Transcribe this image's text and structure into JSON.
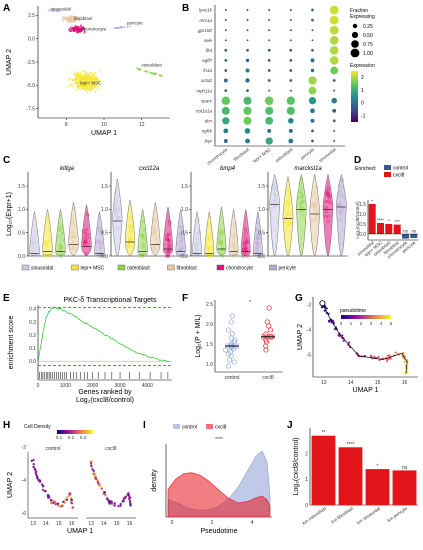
{
  "panels": {
    "A": "A",
    "B": "B",
    "C": "C",
    "D": "D",
    "E": "E",
    "F": "F",
    "G": "G",
    "H": "H",
    "I": "I",
    "J": "J"
  },
  "colors": {
    "sinusoidal": "#c9c9e6",
    "lepr_msc": "#f5e633",
    "osteoblast": "#8fd64b",
    "fibroblast": "#e8c9a6",
    "chondrocyte": "#e0147a",
    "pericyte": "#b7a7d6",
    "control": "#3a5a8c",
    "cxcl8": "#e4141b"
  },
  "chart_data": [
    {
      "id": "A",
      "type": "scatter",
      "xlabel": "UMAP 1",
      "ylabel": "UMAP 2",
      "xticks": [
        8,
        10,
        12
      ],
      "yticks": [
        2.5,
        0.0,
        -2.5,
        -5.0,
        -7.5
      ],
      "xlim": [
        6.5,
        13.5
      ],
      "ylim": [
        -8.5,
        3.5
      ],
      "clusters": [
        {
          "name": "sinusoidal",
          "color": "#c9c9e6",
          "center": [
            7.4,
            3.0
          ]
        },
        {
          "name": "fibroblast",
          "color": "#e8c9a6",
          "center": [
            8.3,
            2.1
          ]
        },
        {
          "name": "chondrocyte",
          "color": "#e0147a",
          "center": [
            8.6,
            1.0
          ]
        },
        {
          "name": "pericyte",
          "color": "#b7a7d6",
          "center": [
            10.9,
            1.2
          ]
        },
        {
          "name": "osteoblast",
          "color": "#8fd64b",
          "center": [
            12.3,
            -3.5
          ]
        },
        {
          "name": "lepr+ MSC",
          "color": "#f5e633",
          "center": [
            9.0,
            -4.6
          ]
        }
      ]
    },
    {
      "id": "B",
      "type": "dotplot",
      "genes": [
        "lyve1b",
        "mrc1a",
        "gpr182",
        "sele",
        "flt4",
        "egfl7",
        "fn1a",
        "acta2",
        "myh11a",
        "sparc",
        "col1a1a",
        "dcn",
        "ngfrb",
        "lepr"
      ],
      "groups": [
        "chondrocyte",
        "fibroblast",
        "lepr+ MSC",
        "osteoblast",
        "pericyte",
        "sinusoidal"
      ],
      "fraction": [
        [
          0.05,
          0.05,
          0.05,
          0.05,
          0.1,
          1.0
        ],
        [
          0.05,
          0.05,
          0.05,
          0.05,
          0.1,
          1.0
        ],
        [
          0.05,
          0.05,
          0.05,
          0.05,
          0.05,
          1.0
        ],
        [
          0.05,
          0.05,
          0.05,
          0.05,
          0.05,
          0.95
        ],
        [
          0.1,
          0.1,
          0.1,
          0.1,
          0.1,
          0.95
        ],
        [
          0.1,
          0.15,
          0.1,
          0.1,
          0.2,
          0.95
        ],
        [
          0.1,
          0.2,
          0.1,
          0.1,
          0.15,
          0.8
        ],
        [
          0.2,
          0.25,
          0.1,
          0.1,
          0.9,
          0.1
        ],
        [
          0.1,
          0.1,
          0.05,
          0.05,
          0.8,
          0.05
        ],
        [
          0.9,
          0.85,
          0.95,
          0.9,
          0.7,
          0.4
        ],
        [
          0.8,
          0.9,
          0.85,
          0.85,
          0.3,
          0.2
        ],
        [
          0.7,
          0.85,
          0.8,
          0.4,
          0.2,
          0.1
        ],
        [
          0.3,
          0.4,
          0.2,
          0.2,
          0.1,
          0.05
        ],
        [
          0.2,
          0.3,
          0.7,
          0.3,
          0.1,
          0.05
        ]
      ],
      "expression": [
        [
          -0.4,
          -0.4,
          -0.4,
          -0.4,
          -0.3,
          2.2
        ],
        [
          -0.4,
          -0.4,
          -0.4,
          -0.4,
          -0.3,
          2.2
        ],
        [
          -0.4,
          -0.4,
          -0.4,
          -0.4,
          -0.4,
          2.1
        ],
        [
          -0.4,
          -0.4,
          -0.4,
          -0.4,
          -0.4,
          2.0
        ],
        [
          -0.3,
          -0.3,
          -0.3,
          -0.3,
          -0.3,
          2.0
        ],
        [
          -0.3,
          -0.2,
          -0.3,
          -0.3,
          0.0,
          2.0
        ],
        [
          -0.3,
          0.0,
          -0.3,
          -0.3,
          -0.1,
          1.6
        ],
        [
          0.0,
          0.1,
          -0.3,
          -0.3,
          1.9,
          -0.3
        ],
        [
          -0.3,
          -0.3,
          -0.4,
          -0.4,
          1.8,
          -0.4
        ],
        [
          1.5,
          1.2,
          1.6,
          1.4,
          0.6,
          0.2
        ],
        [
          1.2,
          1.5,
          1.3,
          1.3,
          0.2,
          -0.1
        ],
        [
          0.9,
          1.6,
          1.2,
          0.3,
          -0.1,
          -0.3
        ],
        [
          0.2,
          0.4,
          0.0,
          0.0,
          -0.3,
          -0.4
        ],
        [
          -0.1,
          0.1,
          0.9,
          0.1,
          -0.3,
          -0.4
        ]
      ],
      "fraction_legend": {
        "title": "Fraction\nExpressing",
        "values": [
          0.25,
          0.5,
          0.75,
          1.0
        ]
      },
      "expression_legend": {
        "title": "Expression",
        "ticks": [
          2,
          1,
          0,
          -1
        ],
        "range": [
          -1.5,
          2.5
        ]
      }
    },
    {
      "id": "C",
      "type": "violin",
      "ylabel": "Log₁₀(Expr+1)",
      "genes": [
        "kitlga",
        "cxcl12a",
        "bmp4",
        "marcksl1a"
      ],
      "yticks": [
        0.0,
        0.5,
        1.0,
        1.5
      ],
      "ylim": [
        0,
        1.8
      ],
      "groups": [
        "sinusoidal",
        "lepr+ MSC",
        "osteoblast",
        "fibroblast",
        "chondrocyte",
        "pericyte"
      ],
      "medians": [
        [
          0.05,
          0.1,
          0.1,
          0.25,
          0.2,
          0.05
        ],
        [
          0.75,
          0.3,
          0.1,
          0.25,
          0.15,
          0.1
        ],
        [
          0.05,
          0.05,
          0.15,
          0.1,
          0.1,
          0.05
        ],
        [
          1.1,
          0.8,
          1.0,
          0.9,
          1.0,
          1.05
        ]
      ]
    },
    {
      "id": "D",
      "type": "bar",
      "ylabel": "Log₂(cxcl8/control)",
      "categories": [
        "sinusoidal",
        "lepr+ MSC",
        "osteoblast",
        "fibroblast",
        "chondrocyte",
        "pericyte"
      ],
      "values": [
        1.5,
        0.55,
        0.5,
        0.47,
        -0.23,
        -0.2
      ],
      "significance": [
        "*",
        "****",
        "*",
        "***",
        "ns",
        "ns"
      ],
      "enriched": [
        "cxcl8",
        "cxcl8",
        "cxcl8",
        "cxcl8",
        "control",
        "control"
      ],
      "yticks": [
        1.5,
        1.0,
        0.5,
        0.0
      ],
      "ylim": [
        -0.3,
        1.7
      ],
      "legend_title": "Enriched:",
      "legend": [
        "control",
        "cxcl8"
      ]
    },
    {
      "id": "E",
      "type": "line",
      "title": "PKC-δ Transcriptional Targets",
      "xlabel": "Genes ranked by\nLog₂(cxcl8/control)",
      "ylabel": "enrichment score",
      "xticks": [
        0,
        1000,
        2000,
        3000,
        4000
      ],
      "yticks": [
        0.4,
        0.3,
        0.2,
        0.1,
        0.0
      ],
      "xlim": [
        0,
        4900
      ],
      "ylim": [
        -0.05,
        0.43
      ],
      "max_es": 0.41,
      "min_es": -0.03,
      "curve": [
        [
          0,
          0
        ],
        [
          100,
          0.12
        ],
        [
          200,
          0.24
        ],
        [
          300,
          0.33
        ],
        [
          400,
          0.38
        ],
        [
          500,
          0.405
        ],
        [
          600,
          0.41
        ],
        [
          800,
          0.4
        ],
        [
          1000,
          0.38
        ],
        [
          1300,
          0.35
        ],
        [
          1600,
          0.31
        ],
        [
          2000,
          0.26
        ],
        [
          2400,
          0.21
        ],
        [
          2800,
          0.16
        ],
        [
          3200,
          0.11
        ],
        [
          3600,
          0.07
        ],
        [
          4000,
          0.04
        ],
        [
          4400,
          0.015
        ],
        [
          4800,
          0.0
        ]
      ],
      "hits": [
        60,
        120,
        180,
        230,
        300,
        360,
        410,
        470,
        530,
        600,
        680,
        740,
        820,
        900,
        980,
        1050,
        1180,
        1300,
        1400,
        1550,
        1700,
        1820,
        2000,
        2200,
        2450,
        2700,
        3000,
        3350,
        3700,
        4100,
        4500,
        4750
      ]
    },
    {
      "id": "F",
      "type": "scatter",
      "ylabel": "Log₂(P + M/L)",
      "categories": [
        "control",
        "cxcl8"
      ],
      "yticks": [
        2.5,
        2.0,
        1.5,
        1.0
      ],
      "ylim": [
        0.8,
        2.6
      ],
      "significance": "*",
      "means": [
        1.45,
        1.68
      ],
      "points": {
        "control": [
          2.2,
          2.05,
          1.85,
          1.75,
          1.65,
          1.6,
          1.55,
          1.5,
          1.45,
          1.42,
          1.38,
          1.35,
          1.3,
          1.25,
          1.2,
          1.1,
          1.05,
          0.95
        ],
        "cxcl8": [
          2.4,
          2.05,
          1.95,
          1.85,
          1.75,
          1.68,
          1.6,
          1.55,
          1.45,
          1.35
        ]
      }
    },
    {
      "id": "G",
      "type": "scatter",
      "xlabel": "UMAP 1",
      "ylabel": "UMAP 2",
      "xticks": [
        13,
        14,
        15,
        16
      ],
      "yticks": [
        -3,
        -4,
        -5
      ],
      "xlim": [
        12.6,
        16.5
      ],
      "ylim": [
        -5.9,
        -2.7
      ],
      "legend_title": "pseudotime",
      "legend_ticks": [
        0,
        1,
        2,
        3,
        4,
        5
      ],
      "trajectory": [
        [
          12.95,
          -2.95
        ],
        [
          13.25,
          -3.6
        ],
        [
          13.6,
          -4.2
        ],
        [
          14.3,
          -5.05
        ],
        [
          15.2,
          -5.2
        ],
        [
          15.9,
          -4.95
        ],
        [
          16.1,
          -5.3
        ],
        [
          16.05,
          -5.75
        ]
      ],
      "start": [
        12.95,
        -2.95
      ]
    },
    {
      "id": "H",
      "type": "scatter",
      "title": "Cell Density",
      "xlabel": "UMAP 1",
      "ylabel": "UMAP 2",
      "facets": [
        "control",
        "cxcl8"
      ],
      "xticks": [
        13,
        14,
        15,
        16
      ],
      "yticks": [
        -2,
        -4,
        -6
      ],
      "xlim": [
        12.6,
        16.5
      ],
      "ylim": [
        -6.3,
        -2.3
      ],
      "legend_ticks": [
        0.1,
        0.2,
        0.3
      ]
    },
    {
      "id": "I",
      "type": "area",
      "xlabel": "Pseudotime",
      "ylabel": "density",
      "xticks": [
        0,
        2,
        4
      ],
      "xlim": [
        -0.3,
        5.0
      ],
      "ylim": [
        0,
        0.42
      ],
      "legend": [
        "control",
        "cxcl8"
      ],
      "significance": "****",
      "series": [
        {
          "name": "control",
          "x": [
            -0.2,
            0.3,
            0.8,
            1.3,
            1.8,
            2.3,
            2.8,
            3.3,
            3.8,
            4.2,
            4.5,
            4.75,
            4.9
          ],
          "y": [
            0.1,
            0.08,
            0.05,
            0.04,
            0.04,
            0.06,
            0.1,
            0.17,
            0.27,
            0.35,
            0.38,
            0.32,
            0.12
          ]
        },
        {
          "name": "cxcl8",
          "x": [
            -0.2,
            0.2,
            0.6,
            1.0,
            1.4,
            1.8,
            2.3,
            2.8,
            3.3,
            3.8,
            4.2,
            4.5,
            4.75,
            4.9
          ],
          "y": [
            0.16,
            0.22,
            0.25,
            0.255,
            0.24,
            0.21,
            0.16,
            0.11,
            0.08,
            0.09,
            0.11,
            0.12,
            0.1,
            0.06
          ]
        }
      ]
    },
    {
      "id": "J",
      "type": "bar",
      "ylabel": "Log₂(cxcl8/control)",
      "categories": [
        "km osteoblast",
        "km fibroblast",
        "km sinusoidal",
        "km pericyte"
      ],
      "values": [
        2.7,
        2.25,
        1.4,
        1.35
      ],
      "significance": [
        "**",
        "****",
        "*",
        "ns"
      ],
      "yticks": [
        2,
        1,
        0
      ],
      "ylim": [
        0,
        3.0
      ]
    }
  ]
}
